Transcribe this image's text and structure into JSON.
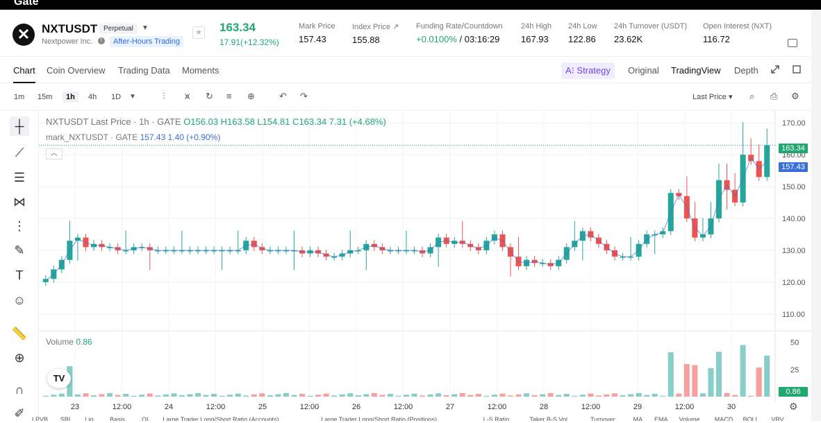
{
  "top": {
    "logo": "Gate"
  },
  "header": {
    "symbol": "NXTUSDT",
    "contract_badge": "Perpetual",
    "company": "Nextpower Inc.",
    "after_hours": "After-Hours Trading",
    "last_price": "163.34",
    "change": "17.91(+12.32%)",
    "stats": [
      {
        "label": "Mark Price",
        "value": "157.43"
      },
      {
        "label": "Index Price ↗",
        "value": "155.88"
      },
      {
        "label": "Funding Rate/Countdown",
        "value_rate": "+0.0100%",
        "value_time": " / 03:16:29"
      },
      {
        "label": "24h High",
        "value": "167.93"
      },
      {
        "label": "24h Low",
        "value": "122.86"
      },
      {
        "label": "24h Turnover (USDT)",
        "value": "23.62K"
      },
      {
        "label": "Open Interest (NXT)",
        "value": "116.72"
      }
    ]
  },
  "tabs": {
    "left": [
      "Chart",
      "Coin Overview",
      "Trading Data",
      "Moments"
    ],
    "strategy": "Strategy",
    "right": [
      "Original",
      "TradingView",
      "Depth"
    ]
  },
  "toolbar": {
    "timeframes": [
      "1m",
      "15m",
      "1h",
      "4h",
      "1D"
    ],
    "price_type": "Last Price"
  },
  "legend": {
    "title": "NXTUSDT Last Price · 1h · GATE",
    "ohlc": "O156.03  H163.58  L154.81  C163.34  7.31  (+4.68%)",
    "mark_label": "mark_NXTUSDT · GATE",
    "mark_values": "157.43  1.40  (+0.90%)"
  },
  "volume": {
    "label": "Volume",
    "value": "0.86"
  },
  "price_tags": {
    "last": "163.34",
    "mark": "157.43",
    "volume": "0.86"
  },
  "colors": {
    "up": "#26a69a",
    "down": "#ef5350",
    "accent": "#20a870",
    "mark_line": "#3a6fd8"
  },
  "bottom_indicators": [
    "LPVB",
    "SBI",
    "Liq",
    "Basis",
    "OI",
    "Large Trader Long/Short Ratio (Accounts)",
    "Large Trader Long/Short Ratio (Positions)",
    "L-S Ratio",
    "Taker B-S Vol",
    "Turnover",
    "MA",
    "EMA",
    "Volume",
    "MACD",
    "BOLL",
    "VRV"
  ],
  "chart_data": {
    "type": "candlestick",
    "title": "NXTUSDT Last Price · 1h · GATE",
    "x_tick_labels": [
      "23",
      "12:00",
      "24",
      "12:00",
      "25",
      "12:00",
      "26",
      "12:00",
      "27",
      "12:00",
      "28",
      "12:00",
      "29",
      "12:00",
      "30"
    ],
    "y_tick_labels": [
      "170.00",
      "160.00",
      "150.00",
      "140.00",
      "130.00",
      "120.00",
      "110.00"
    ],
    "ylim": [
      108,
      172
    ],
    "volume_tick_labels": [
      "50",
      "25"
    ],
    "volume_ylim": [
      0,
      60
    ],
    "close_series": [
      121,
      124,
      127,
      133,
      134,
      131,
      132,
      131,
      131,
      130,
      130,
      131,
      131,
      130,
      130,
      130,
      130,
      130,
      130,
      130,
      130,
      130,
      130,
      130,
      130,
      133,
      131,
      130,
      130,
      130,
      130,
      130,
      129,
      130,
      129,
      128,
      128,
      129,
      130,
      130,
      132,
      131,
      130,
      130,
      130,
      130,
      130,
      129,
      131,
      134,
      132,
      133,
      132,
      131,
      130,
      133,
      135,
      131,
      128,
      125,
      127,
      126,
      126,
      125,
      127,
      131,
      133,
      136,
      134,
      132,
      130,
      128,
      128,
      128,
      132,
      135,
      135,
      136,
      148,
      147,
      140,
      134,
      135,
      140,
      152,
      149,
      145,
      160,
      158,
      153,
      163
    ]
  }
}
